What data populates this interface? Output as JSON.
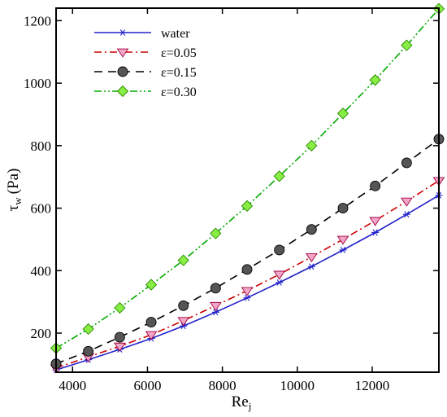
{
  "chart_data": {
    "type": "line",
    "ylabel_main": "τ",
    "ylabel_sub": "w",
    "ylabel_unit": "(Pa)",
    "xlabel_main": "Re",
    "xlabel_sub": "j",
    "xlim": [
      3560,
      13780
    ],
    "ylim": [
      75,
      1240
    ],
    "xticks": [
      4000,
      6000,
      8000,
      10000,
      12000
    ],
    "yticks": [
      200,
      400,
      600,
      800,
      1000,
      1200
    ],
    "legend_position": "top-left",
    "grid": false,
    "x": [
      3560,
      4420,
      5260,
      6100,
      6960,
      7820,
      8660,
      9520,
      10380,
      11220,
      12080,
      12920,
      13780
    ],
    "series": [
      {
        "name": "water",
        "color": "#2222cc",
        "dash": "",
        "marker": "star",
        "values": [
          82,
          115,
          148,
          183,
          223,
          267,
          313,
          362,
          413,
          466,
          522,
          580,
          641
        ]
      },
      {
        "name": "ε=0.05",
        "color": "#cc0000",
        "dash": "9 4 2 4",
        "marker": "triangle-down",
        "marker_fill": "#f4a6c8",
        "values": [
          88,
          124,
          158,
          195,
          240,
          288,
          336,
          388,
          444,
          500,
          560,
          622,
          688
        ]
      },
      {
        "name": "ε=0.15",
        "color": "#000000",
        "dash": "10 7",
        "marker": "circle",
        "marker_fill": "#555555",
        "values": [
          102,
          142,
          187,
          235,
          288,
          344,
          404,
          466,
          532,
          600,
          671,
          745,
          821
        ]
      },
      {
        "name": "ε=0.30",
        "color": "#00aa00",
        "dash": "9 3 2 3 2 3",
        "marker": "diamond",
        "marker_fill": "#88ee44",
        "values": [
          152,
          213,
          281,
          355,
          433,
          519,
          607,
          702,
          800,
          903,
          1010,
          1121,
          1238
        ]
      }
    ]
  }
}
